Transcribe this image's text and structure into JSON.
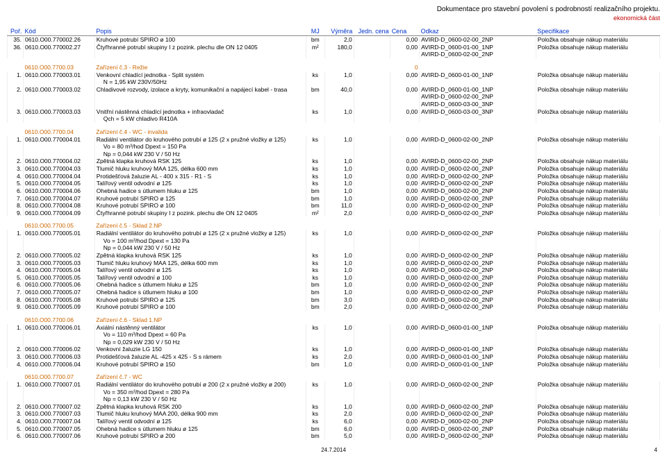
{
  "header": {
    "doc_title": "Dokumentace pro stavební povolení s podrobností realizačního projektu.",
    "doc_subtitle": "ekonomická část",
    "columns": {
      "por": "Poř.",
      "kod": "Kód",
      "popis": "Popis",
      "mj": "MJ",
      "vym": "Výměra",
      "jc": "Jedn. cena",
      "cena": "Cena",
      "odkaz": "Odkaz",
      "spec": "Specifikace"
    }
  },
  "rows": [
    {
      "t": "i",
      "por": "35.",
      "kod": "0610.O00.770002.26",
      "popis": "Kruhové potrubí SPIRO ø 100",
      "mj": "bm",
      "v": "2,0",
      "c": "0,00",
      "od": "AVIRD-D_0600-02-00_2NP",
      "sp": "Položka obsahuje nákup materiálu"
    },
    {
      "t": "i",
      "por": "36.",
      "kod": "0610.O00.770002.27",
      "popis": "Čtyřhranné potrubí skupiny I z pozink. plechu dle ON 12 0405",
      "mj": "m²",
      "v": "180,0",
      "c": "0,00",
      "od": "AVIRD-D_0600-01-00_1NP",
      "sp": "Položka obsahuje nákup materiálu"
    },
    {
      "t": "x",
      "popis": "",
      "od": "AVIRD-D_0600-02-00_2NP"
    },
    {
      "t": "g"
    },
    {
      "t": "s",
      "kod": "0610.O00.7700.03",
      "popis": "Zařízení č.3 - Režie",
      "c": "0"
    },
    {
      "t": "i",
      "por": "1.",
      "kod": "0610.O00.770003.01",
      "popis": "Venkovní chladící jednotka - Split systém",
      "mj": "ks",
      "v": "1,0",
      "c": "0,00",
      "od": "AVIRD-D_0600-01-00_1NP",
      "sp": "Položka obsahuje nákup materiálu"
    },
    {
      "t": "x",
      "popis": "N = 1,95 kW          230V/50Hz"
    },
    {
      "t": "i",
      "por": "2.",
      "kod": "0610.O00.770003.02",
      "popis": "Chladivové rozvody, izolace a kryty, komunikační a napájecí kabel - trasa",
      "mj": "bm",
      "v": "40,0",
      "c": "0,00",
      "od": "AVIRD-D_0600-01-00_1NP",
      "sp": "Položka obsahuje nákup materiálu"
    },
    {
      "t": "x",
      "od": "AVIRD-D_0600-02-00_2NP"
    },
    {
      "t": "x",
      "od": "AVIRD-D_0600-03-00_3NP"
    },
    {
      "t": "i",
      "por": "3.",
      "kod": "0610.O00.770003.03",
      "popis": "Vnitřní nástěnná chladící jednotka + infraovladač",
      "mj": "ks",
      "v": "1,0",
      "c": "0,00",
      "od": "AVIRD-D_0600-03-00_3NP",
      "sp": "Položka obsahuje nákup materiálu"
    },
    {
      "t": "x",
      "popis": "Qch = 5 kW          chladivo R410A"
    },
    {
      "t": "g"
    },
    {
      "t": "s",
      "kod": "0610.O00.7700.04",
      "popis": "Zařízení č.4 - WC - invalida"
    },
    {
      "t": "i",
      "por": "1.",
      "kod": "0610.O00.770004.01",
      "popis": "Radiální ventilátor do kruhového potrubí ø 125 (2 x pružné vložky ø 125)",
      "mj": "ks",
      "v": "1,0",
      "c": "0,00",
      "od": "AVIRD-D_0600-02-00_2NP",
      "sp": "Položka obsahuje nákup materiálu"
    },
    {
      "t": "x",
      "popis": "Vo = 80 m³/hod          Dpext = 150 Pa"
    },
    {
      "t": "x",
      "popis": "Np = 0,044 kW          230 V / 50 Hz"
    },
    {
      "t": "i",
      "por": "2.",
      "kod": "0610.O00.770004.02",
      "popis": "Zpětná klapka kruhová RSK 125",
      "mj": "ks",
      "v": "1,0",
      "c": "0,00",
      "od": "AVIRD-D_0600-02-00_2NP",
      "sp": "Položka obsahuje nákup materiálu"
    },
    {
      "t": "i",
      "por": "3.",
      "kod": "0610.O00.770004.03",
      "popis": "Tlumič hluku kruhový MAA 125, délka 600 mm",
      "mj": "ks",
      "v": "1,0",
      "c": "0,00",
      "od": "AVIRD-D_0600-02-00_2NP",
      "sp": "Položka obsahuje nákup materiálu"
    },
    {
      "t": "i",
      "por": "4.",
      "kod": "0610.O00.770004.04",
      "popis": "Protidešťová žaluzie AL - 400 x 315 - R1 - S",
      "mj": "ks",
      "v": "1,0",
      "c": "0,00",
      "od": "AVIRD-D_0600-02-00_2NP",
      "sp": "Položka obsahuje nákup materiálu"
    },
    {
      "t": "i",
      "por": "5.",
      "kod": "0610.O00.770004.05",
      "popis": "Talířový ventil odvodní ø 125",
      "mj": "ks",
      "v": "1,0",
      "c": "0,00",
      "od": "AVIRD-D_0600-02-00_2NP",
      "sp": "Položka obsahuje nákup materiálu"
    },
    {
      "t": "i",
      "por": "6.",
      "kod": "0610.O00.770004.06",
      "popis": "Ohebná hadice s útlumem hluku ø 125",
      "mj": "bm",
      "v": "1,0",
      "c": "0,00",
      "od": "AVIRD-D_0600-02-00_2NP",
      "sp": "Položka obsahuje nákup materiálu"
    },
    {
      "t": "i",
      "por": "7.",
      "kod": "0610.O00.770004.07",
      "popis": "Kruhové potrubí SPIRO ø 125",
      "mj": "bm",
      "v": "1,0",
      "c": "0,00",
      "od": "AVIRD-D_0600-02-00_2NP",
      "sp": "Položka obsahuje nákup materiálu"
    },
    {
      "t": "i",
      "por": "8.",
      "kod": "0610.O00.770004.08",
      "popis": "Kruhové potrubí SPIRO ø 100",
      "mj": "bm",
      "v": "11,0",
      "c": "0,00",
      "od": "AVIRD-D_0600-02-00_2NP",
      "sp": "Položka obsahuje nákup materiálu"
    },
    {
      "t": "i",
      "por": "9.",
      "kod": "0610.O00.770004.09",
      "popis": "Čtyřhranné potrubí skupiny I z pozink. plechu dle ON 12 0405",
      "mj": "m²",
      "v": "2,0",
      "c": "0,00",
      "od": "AVIRD-D_0600-02-00_2NP",
      "sp": "Položka obsahuje nákup materiálu"
    },
    {
      "t": "g"
    },
    {
      "t": "s",
      "kod": "0610.O00.7700.05",
      "popis": "Zařízení č.5 - Sklad 2.NP"
    },
    {
      "t": "i",
      "por": "1.",
      "kod": "0610.O00.770005.01",
      "popis": "Radiální ventilátor do kruhového potrubí ø 125 (2 x pružné vložky ø 125)",
      "mj": "ks",
      "v": "1,0",
      "c": "0,00",
      "od": "AVIRD-D_0600-02-00_2NP",
      "sp": "Položka obsahuje nákup materiálu"
    },
    {
      "t": "x",
      "popis": "Vo = 100 m³/hod          Dpext = 130 Pa"
    },
    {
      "t": "x",
      "popis": "Np = 0,044 kW          230 V / 50 Hz"
    },
    {
      "t": "i",
      "por": "2.",
      "kod": "0610.O00.770005.02",
      "popis": "Zpětná klapka kruhová RSK 125",
      "mj": "ks",
      "v": "1,0",
      "c": "0,00",
      "od": "AVIRD-D_0600-02-00_2NP",
      "sp": "Položka obsahuje nákup materiálu"
    },
    {
      "t": "i",
      "por": "3.",
      "kod": "0610.O00.770005.03",
      "popis": "Tlumič hluku kruhový MAA 125, délka 600 mm",
      "mj": "ks",
      "v": "1,0",
      "c": "0,00",
      "od": "AVIRD-D_0600-02-00_2NP",
      "sp": "Položka obsahuje nákup materiálu"
    },
    {
      "t": "i",
      "por": "4.",
      "kod": "0610.O00.770005.04",
      "popis": "Talířový ventil odvodní ø 125",
      "mj": "ks",
      "v": "1,0",
      "c": "0,00",
      "od": "AVIRD-D_0600-02-00_2NP",
      "sp": "Položka obsahuje nákup materiálu"
    },
    {
      "t": "i",
      "por": "5.",
      "kod": "0610.O00.770005.05",
      "popis": "Talířový ventil odvodní ø 100",
      "mj": "ks",
      "v": "1,0",
      "c": "0,00",
      "od": "AVIRD-D_0600-02-00_2NP",
      "sp": "Položka obsahuje nákup materiálu"
    },
    {
      "t": "i",
      "por": "6.",
      "kod": "0610.O00.770005.06",
      "popis": "Ohebná hadice s útlumem hluku ø 125",
      "mj": "bm",
      "v": "1,0",
      "c": "0,00",
      "od": "AVIRD-D_0600-02-00_2NP",
      "sp": "Položka obsahuje nákup materiálu"
    },
    {
      "t": "i",
      "por": "7.",
      "kod": "0610.O00.770005.07",
      "popis": "Ohebná hadice s útlumem hluku ø 100",
      "mj": "bm",
      "v": "1,0",
      "c": "0,00",
      "od": "AVIRD-D_0600-02-00_2NP",
      "sp": "Položka obsahuje nákup materiálu"
    },
    {
      "t": "i",
      "por": "8.",
      "kod": "0610.O00.770005.08",
      "popis": "Kruhové potrubí SPIRO ø 125",
      "mj": "bm",
      "v": "3,0",
      "c": "0,00",
      "od": "AVIRD-D_0600-02-00_2NP",
      "sp": "Položka obsahuje nákup materiálu"
    },
    {
      "t": "i",
      "por": "9.",
      "kod": "0610.O00.770005.09",
      "popis": "Kruhové potrubí SPIRO ø 100",
      "mj": "bm",
      "v": "2,0",
      "c": "0,00",
      "od": "AVIRD-D_0600-02-00_2NP",
      "sp": "Položka obsahuje nákup materiálu"
    },
    {
      "t": "g"
    },
    {
      "t": "s",
      "kod": "0610.O00.7700.06",
      "popis": "Zařízení č.6 - Sklad 1.NP"
    },
    {
      "t": "i",
      "por": "1.",
      "kod": "0610.O00.770006.01",
      "popis": "Axiální nástěnný ventilátor",
      "mj": "ks",
      "v": "1,0",
      "c": "0,00",
      "od": "AVIRD-D_0600-01-00_1NP",
      "sp": "Položka obsahuje nákup materiálu"
    },
    {
      "t": "x",
      "popis": "Vo = 110 m³/hod          Dpext = 60 Pa"
    },
    {
      "t": "x",
      "popis": "Np = 0,029 kW          230 V / 50 Hz"
    },
    {
      "t": "i",
      "por": "2.",
      "kod": "0610.O00.770006.02",
      "popis": "Venkovní žaluzie LG 150",
      "mj": "ks",
      "v": "1,0",
      "c": "0,00",
      "od": "AVIRD-D_0600-01-00_1NP",
      "sp": "Položka obsahuje nákup materiálu"
    },
    {
      "t": "i",
      "por": "3.",
      "kod": "0610.O00.770006.03",
      "popis": "Protidešťová žaluzie AL -425 x 425 - S s rámem",
      "mj": "ks",
      "v": "2,0",
      "c": "0,00",
      "od": "AVIRD-D_0600-01-00_1NP",
      "sp": "Položka obsahuje nákup materiálu"
    },
    {
      "t": "i",
      "por": "4.",
      "kod": "0610.O00.770006.04",
      "popis": "Kruhové potrubí SPIRO ø 150",
      "mj": "bm",
      "v": "1,0",
      "c": "0,00",
      "od": "AVIRD-D_0600-01-00_1NP",
      "sp": "Položka obsahuje nákup materiálu"
    },
    {
      "t": "g"
    },
    {
      "t": "s",
      "kod": "0610.O00.7700.07",
      "popis": "Zařízení č.7 - WC"
    },
    {
      "t": "i",
      "por": "1.",
      "kod": "0610.O00.770007.01",
      "popis": "Radiální ventilátor do kruhového potrubí ø 200 (2 x pružné vložky ø 200)",
      "mj": "ks",
      "v": "1,0",
      "c": "0,00",
      "od": "AVIRD-D_0600-02-00_2NP",
      "sp": "Položka obsahuje nákup materiálu"
    },
    {
      "t": "x",
      "popis": "Vo = 350 m³/hod          Dpext = 280 Pa"
    },
    {
      "t": "x",
      "popis": "Np = 0,13 kW          230 V / 50 Hz"
    },
    {
      "t": "i",
      "por": "2.",
      "kod": "0610.O00.770007.02",
      "popis": "Zpětná klapka kruhová RSK 200",
      "mj": "ks",
      "v": "1,0",
      "c": "0,00",
      "od": "AVIRD-D_0600-02-00_2NP",
      "sp": "Položka obsahuje nákup materiálu"
    },
    {
      "t": "i",
      "por": "3.",
      "kod": "0610.O00.770007.03",
      "popis": "Tlumič hluku kruhový MAA 200, délka 900 mm",
      "mj": "ks",
      "v": "2,0",
      "c": "0,00",
      "od": "AVIRD-D_0600-02-00_2NP",
      "sp": "Položka obsahuje nákup materiálu"
    },
    {
      "t": "i",
      "por": "4.",
      "kod": "0610.O00.770007.04",
      "popis": "Talířový ventil odvodní ø 125",
      "mj": "ks",
      "v": "6,0",
      "c": "0,00",
      "od": "AVIRD-D_0600-02-00_2NP",
      "sp": "Položka obsahuje nákup materiálu"
    },
    {
      "t": "i",
      "por": "5.",
      "kod": "0610.O00.770007.05",
      "popis": "Ohebná hadice s útlumem hluku ø 125",
      "mj": "bm",
      "v": "6,0",
      "c": "0,00",
      "od": "AVIRD-D_0600-02-00_2NP",
      "sp": "Položka obsahuje nákup materiálu"
    },
    {
      "t": "i",
      "por": "6.",
      "kod": "0610.O00.770007.06",
      "popis": "Kruhové potrubí SPIRO ø 200",
      "mj": "bm",
      "v": "5,0",
      "c": "0,00",
      "od": "AVIRD-D_0600-02-00_2NP",
      "sp": "Položka obsahuje nákup materiálu"
    }
  ],
  "footer": {
    "date": "24.7.2014",
    "page": "4"
  }
}
